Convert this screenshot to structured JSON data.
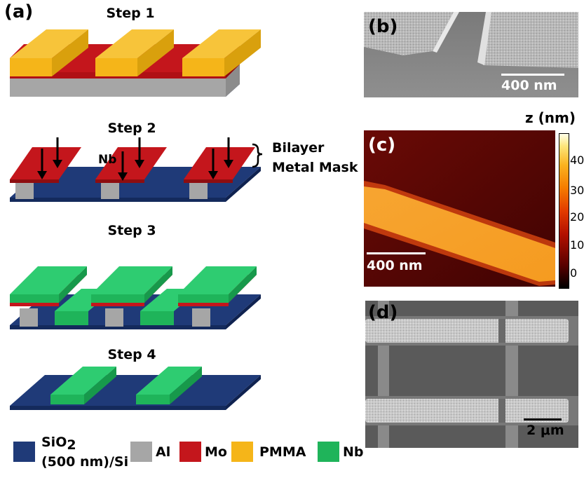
{
  "panel_a": {
    "label": "(a)",
    "steps": [
      "Step 1",
      "Step 2",
      "Step 3",
      "Step 4"
    ],
    "nb_label": "Nb",
    "mask_label_line1": "Bilayer",
    "mask_label_line2": "Metal Mask"
  },
  "legend": {
    "sio2_line1": "SiO",
    "sio2_sub": "2",
    "sio2_line2": "(500 nm)/Si",
    "al": "Al",
    "mo": "Mo",
    "pmma": "PMMA",
    "nb": "Nb"
  },
  "panel_b": {
    "label": "(b)",
    "scalebar": "400 nm"
  },
  "panel_c": {
    "label": "(c)",
    "scalebar": "400 nm",
    "colorbar_title": "z (nm)",
    "colorbar_ticks": [
      "40",
      "30",
      "20",
      "10",
      "0"
    ]
  },
  "panel_d": {
    "label": "(d)",
    "scalebar": "2 μm"
  },
  "colors": {
    "sio2": "#1f3a78",
    "al": "#a6a6a6",
    "mo": "#c4161c",
    "pmma": "#f5b519",
    "nb": "#1fb45a"
  }
}
